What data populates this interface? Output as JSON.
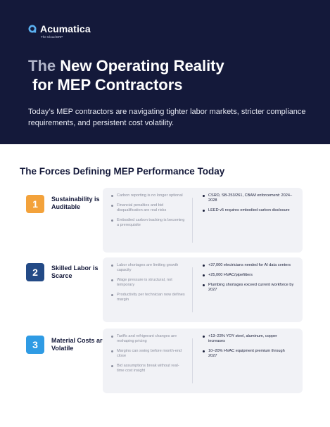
{
  "brand": {
    "name": "Acumatica",
    "tagline": "The Cloud ERP",
    "accent": "#5ab0f0"
  },
  "hero": {
    "title_part1": "The",
    "title_part2": " New Operating Reality",
    "title_line2": "for MEP Contractors",
    "subtitle": "Today’s MEP contractors are navigating tighter labor markets, stricter compliance requirements, and persistent cost volatility.",
    "background": "#14193a"
  },
  "section": {
    "title": "The Forces Defining MEP Performance Today"
  },
  "forces": [
    {
      "number": "1",
      "color": "#f3a23b",
      "title": "Sustainability is Auditable",
      "impacts": [
        "Carbon reporting is no longer optional",
        "Financial penalties and bid disqualification are real risks",
        "Embodied carbon tracking is becoming a prerequisite"
      ],
      "facts": [
        "CSRD, SB-253/261, CBAM enforcement: 2024–2028",
        "LEED v5 requires embodied-carbon disclosure"
      ]
    },
    {
      "number": "2",
      "color": "#234a86",
      "title": "Skilled Labor is Scarce",
      "impacts": [
        "Labor shortages are limiting growth capacity",
        "Wage pressure is structural, not temporary",
        "Productivity per technician now defines margin"
      ],
      "facts": [
        "+37,000 electricians needed for AI data centers",
        "+25,000 HVAC/pipefitters",
        "Plumbing shortages exceed current workforce by 2027"
      ]
    },
    {
      "number": "3",
      "color": "#2f9be4",
      "title": "Material Costs are Volatile",
      "impacts": [
        "Tariffs and refrigerant changes are reshaping pricing",
        "Margins can swing before month-end close",
        "Bid assumptions break without real-time cost insight"
      ],
      "facts": [
        "+13–23% YOY steel, aluminum, copper increases",
        "10–20% HVAC equipment premium through 2027"
      ]
    }
  ]
}
